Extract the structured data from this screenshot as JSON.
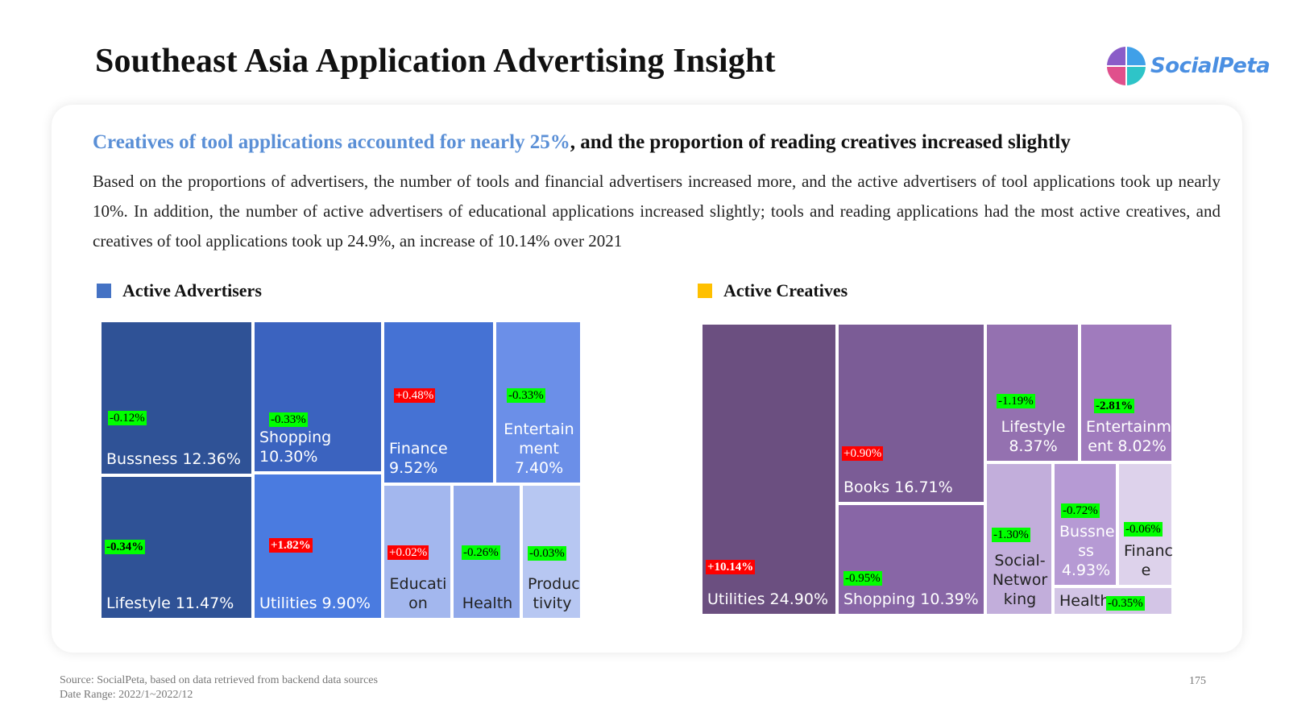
{
  "page": {
    "title": "Southeast Asia Application Advertising Insight",
    "logo_text": "SocialPeta",
    "headline_highlight": "Creatives of tool applications accounted for nearly 25%",
    "headline_rest": ", and the proportion of reading creatives increased slightly",
    "body": "Based on the proportions of advertisers, the number of tools and financial advertisers increased more, and the active advertisers of tool applications took up nearly 10%. In addition, the number of active advertisers of educational applications increased slightly; tools and reading applications had the most active creatives, and creatives of tool applications took up 24.9%, an increase of 10.14% over 2021",
    "footer_source": "Source: SocialPeta, based on data retrieved from backend data sources",
    "footer_range": "Date Range: 2022/1~2022/12",
    "page_number": "175"
  },
  "colors": {
    "advertisers_legend": "#4472c4",
    "creatives_legend": "#ffc000",
    "increase": "#ff0000",
    "decrease": "#00ff00"
  },
  "chart_data": [
    {
      "type": "treemap",
      "title": "Active Advertisers",
      "items": [
        {
          "label": "Bussness 12.36%",
          "category": "Bussness",
          "share": 12.36,
          "change": "-0.12%",
          "color": "#2f5296"
        },
        {
          "label": "Lifestyle 11.47%",
          "category": "Lifestyle",
          "share": 11.47,
          "change": "-0.34%",
          "color": "#2f5296"
        },
        {
          "label": "Shopping 10.30%",
          "category": "Shopping",
          "share": 10.3,
          "change": "-0.33%",
          "color": "#3b63bf"
        },
        {
          "label": "Utilities 9.90%",
          "category": "Utilities",
          "share": 9.9,
          "change": "+1.82%",
          "color": "#4a7be0"
        },
        {
          "label": "Finance 9.52%",
          "category": "Finance",
          "share": 9.52,
          "change": "+0.48%",
          "color": "#4572d4"
        },
        {
          "label": "Entertain ment 7.40%",
          "category": "Entertainment",
          "share": 7.4,
          "change": "-0.33%",
          "color": "#6b8fe8"
        },
        {
          "label": "Educati on",
          "category": "Education",
          "share": null,
          "change": "+0.02%",
          "color": "#a3b7ee"
        },
        {
          "label": "Health",
          "category": "Health",
          "share": null,
          "change": "-0.26%",
          "color": "#91a9ea"
        },
        {
          "label": "Produc tivity",
          "category": "Productivity",
          "share": null,
          "change": "-0.03%",
          "color": "#b7c7f2"
        }
      ]
    },
    {
      "type": "treemap",
      "title": "Active Creatives",
      "items": [
        {
          "label": "Utilities 24.90%",
          "category": "Utilities",
          "share": 24.9,
          "change": "+10.14%",
          "color": "#6b4f80"
        },
        {
          "label": "Books 16.71%",
          "category": "Books",
          "share": 16.71,
          "change": "+0.90%",
          "color": "#7b5c96"
        },
        {
          "label": "Shopping 10.39%",
          "category": "Shopping",
          "share": 10.39,
          "change": "-0.95%",
          "color": "#8866a6"
        },
        {
          "label": "Lifestyle 8.37%",
          "category": "Lifestyle",
          "share": 8.37,
          "change": "-1.19%",
          "color": "#9471b0"
        },
        {
          "label": "Entertainm ent 8.02%",
          "category": "Entertainment",
          "share": 8.02,
          "change": "-2.81%",
          "color": "#a07bbd"
        },
        {
          "label": "Social-Networ king",
          "category": "Social-Networking",
          "share": null,
          "change": "-1.30%",
          "color": "#c2aedb"
        },
        {
          "label": "Bussne ss 4.93%",
          "category": "Bussness",
          "share": 4.93,
          "change": "-0.72%",
          "color": "#b69ad4"
        },
        {
          "label": "Financ e",
          "category": "Finance",
          "share": null,
          "change": "-0.06%",
          "color": "#ddd2eb"
        },
        {
          "label": "Health",
          "category": "Health",
          "share": null,
          "change": "-0.35%",
          "color": "#d3c5e6"
        }
      ]
    }
  ]
}
